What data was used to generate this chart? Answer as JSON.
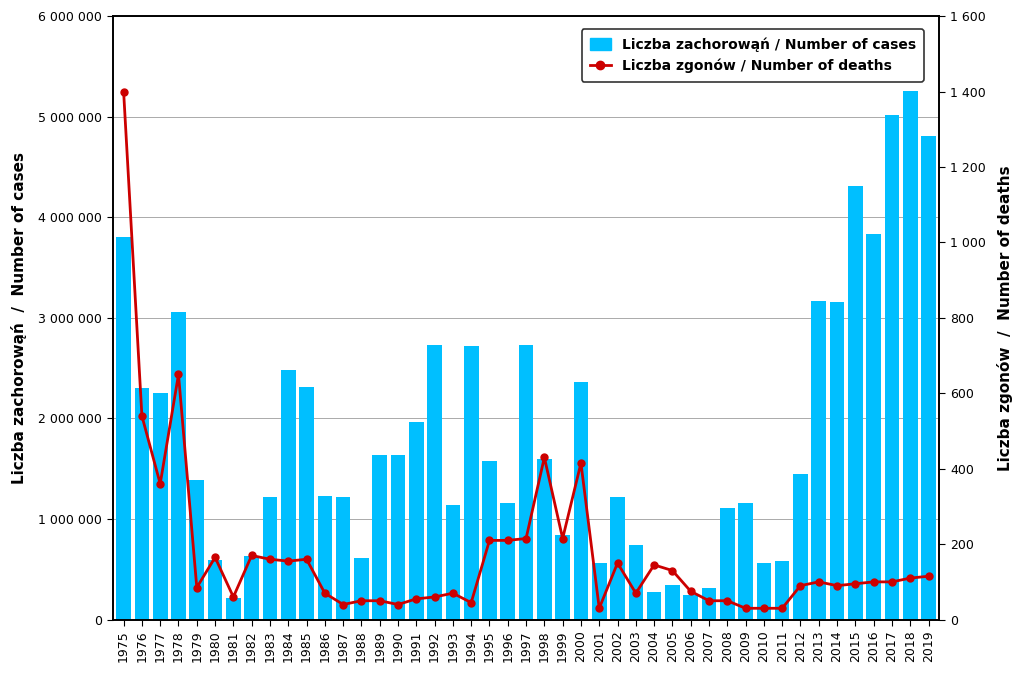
{
  "years": [
    1975,
    1976,
    1977,
    1978,
    1979,
    1980,
    1981,
    1982,
    1983,
    1984,
    1985,
    1986,
    1987,
    1988,
    1989,
    1990,
    1991,
    1992,
    1993,
    1994,
    1995,
    1996,
    1997,
    1998,
    1999,
    2000,
    2001,
    2002,
    2003,
    2004,
    2005,
    2006,
    2007,
    2008,
    2009,
    2010,
    2011,
    2012,
    2013,
    2014,
    2015,
    2016,
    2017,
    2018,
    2019
  ],
  "cases": [
    3800000,
    2300000,
    2250000,
    3060000,
    1390000,
    590000,
    210000,
    630000,
    1220000,
    2480000,
    2310000,
    1230000,
    1220000,
    610000,
    1640000,
    1640000,
    1960000,
    2730000,
    1140000,
    2720000,
    1580000,
    1160000,
    2730000,
    1600000,
    840000,
    2360000,
    560000,
    1220000,
    740000,
    270000,
    340000,
    240000,
    310000,
    1110000,
    1160000,
    560000,
    580000,
    1450000,
    3170000,
    3160000,
    4310000,
    3830000,
    5020000,
    5260000,
    4810000
  ],
  "deaths": [
    1400,
    540,
    360,
    650,
    85,
    165,
    60,
    170,
    160,
    155,
    160,
    70,
    40,
    50,
    50,
    40,
    55,
    60,
    70,
    45,
    210,
    210,
    215,
    430,
    215,
    415,
    30,
    150,
    70,
    145,
    130,
    75,
    50,
    50,
    30,
    30,
    30,
    90,
    100,
    90,
    95,
    100,
    100,
    110,
    115
  ],
  "bar_color": "#00BFFF",
  "line_color": "#CC0000",
  "marker_color": "#CC0000",
  "background_color": "#ffffff",
  "ylabel_left": "Liczba zachorowąń  /  Number of cases",
  "ylabel_right": "Liczba zgonów  /  Number of deaths",
  "legend_cases": "Liczba zachorowąń / Number of cases",
  "legend_deaths": "Liczba zgonów / Number of deaths",
  "ylim_left": [
    0,
    6000000
  ],
  "ylim_right": [
    0,
    1600
  ],
  "yticks_left": [
    0,
    1000000,
    2000000,
    3000000,
    4000000,
    5000000,
    6000000
  ],
  "yticks_right": [
    0,
    200,
    400,
    600,
    800,
    1000,
    1200,
    1400,
    1600
  ],
  "figsize": [
    10.24,
    6.73
  ],
  "dpi": 100
}
